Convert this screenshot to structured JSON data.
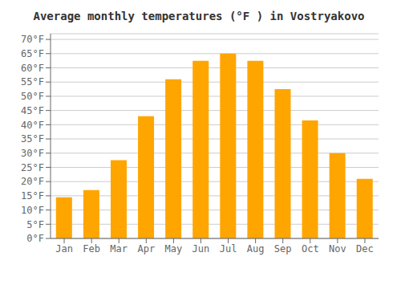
{
  "chart_data": {
    "type": "bar",
    "title": "Average monthly temperatures (°F ) in Vostryakovo",
    "categories": [
      "Jan",
      "Feb",
      "Mar",
      "Apr",
      "May",
      "Jun",
      "Jul",
      "Aug",
      "Sep",
      "Oct",
      "Nov",
      "Dec"
    ],
    "values": [
      14.5,
      17.0,
      27.5,
      43.0,
      56.0,
      62.5,
      65.0,
      62.5,
      52.5,
      41.5,
      30.0,
      21.0
    ],
    "color": "#FFA500",
    "ylim": [
      0,
      72
    ],
    "yticks": [
      {
        "value": 0,
        "label": "0°F"
      },
      {
        "value": 5,
        "label": "5°F"
      },
      {
        "value": 10,
        "label": "10°F"
      },
      {
        "value": 15,
        "label": "15°F"
      },
      {
        "value": 20,
        "label": "20°F"
      },
      {
        "value": 25,
        "label": "25°F"
      },
      {
        "value": 30,
        "label": "30°F"
      },
      {
        "value": 35,
        "label": "35°F"
      },
      {
        "value": 40,
        "label": "40°F"
      },
      {
        "value": 45,
        "label": "45°F"
      },
      {
        "value": 50,
        "label": "50°F"
      },
      {
        "value": 55,
        "label": "55°F"
      },
      {
        "value": 60,
        "label": "60°F"
      },
      {
        "value": 65,
        "label": "65°F"
      },
      {
        "value": 70,
        "label": "70°F"
      }
    ],
    "grid": true
  }
}
